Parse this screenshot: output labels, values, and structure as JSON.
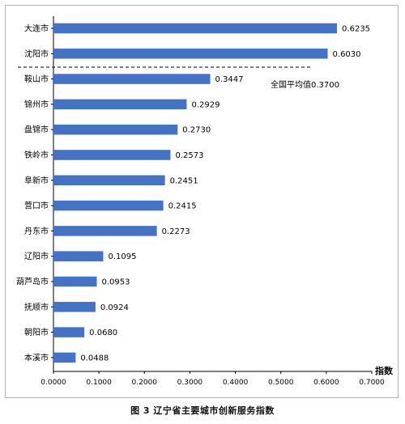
{
  "chart_data": {
    "type": "bar",
    "orientation": "horizontal",
    "title": "图 3 辽宁省主要城市创新服务指数",
    "xlabel": "指数",
    "ylabel": "",
    "xlim": [
      0,
      0.7
    ],
    "x_ticks": [
      "0.0000",
      "0.1000",
      "0.2000",
      "0.3000",
      "0.4000",
      "0.5000",
      "0.6000",
      "0.7000"
    ],
    "categories": [
      "大连市",
      "沈阳市",
      "鞍山市",
      "锦州市",
      "盘锦市",
      "铁岭市",
      "阜新市",
      "营口市",
      "丹东市",
      "辽阳市",
      "葫芦岛市",
      "抚顺市",
      "朝阳市",
      "本溪市"
    ],
    "values": [
      0.6235,
      0.603,
      0.3447,
      0.2929,
      0.273,
      0.2573,
      0.2451,
      0.2415,
      0.2273,
      0.1095,
      0.0953,
      0.0924,
      0.068,
      0.0488
    ],
    "value_labels": [
      "0.6235",
      "0.6030",
      "0.3447",
      "0.2929",
      "0.2730",
      "0.2573",
      "0.2451",
      "0.2415",
      "0.2273",
      "0.1095",
      "0.0953",
      "0.0924",
      "0.0680",
      "0.0488"
    ],
    "bar_color": "#4472C4",
    "reference_line": {
      "label": "全国平均值0.3700",
      "style": "dashed"
    },
    "grid": false,
    "legend": "none"
  }
}
